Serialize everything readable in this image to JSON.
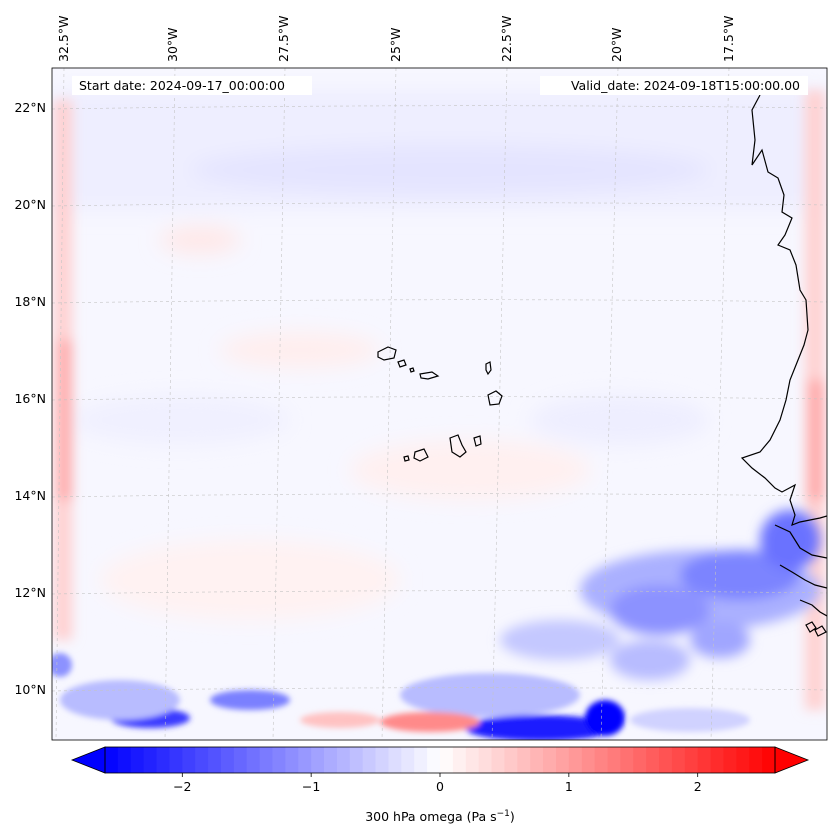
{
  "header": {
    "start_date": "Start date: 2024-09-17_00:00:00",
    "valid_date": "Valid_date: 2024-09-18T15:00:00.00"
  },
  "map": {
    "longitude_labels": [
      "32.5°W",
      "30°W",
      "27.5°W",
      "25°W",
      "22.5°W",
      "20°W",
      "17.5°W"
    ],
    "latitude_labels": [
      "22°N",
      "20°N",
      "18°N",
      "16°N",
      "14°N",
      "12°N",
      "10°N"
    ],
    "lon_range_deg": [
      -32.5,
      -15.0
    ],
    "lat_range_deg": [
      8.9,
      22.7
    ]
  },
  "colorbar": {
    "label": "300 hPa omega (Pa s",
    "label_sup": "−1",
    "label_close": ")",
    "ticks": [
      "−2",
      "−1",
      "0",
      "1",
      "2"
    ],
    "tick_values": [
      -2,
      -1,
      0,
      1,
      2
    ],
    "range": [
      -2.6,
      2.6
    ],
    "colormap": "bwr",
    "color_low": "#0000ff",
    "color_mid": "#ffffff",
    "color_high": "#ff0000"
  }
}
